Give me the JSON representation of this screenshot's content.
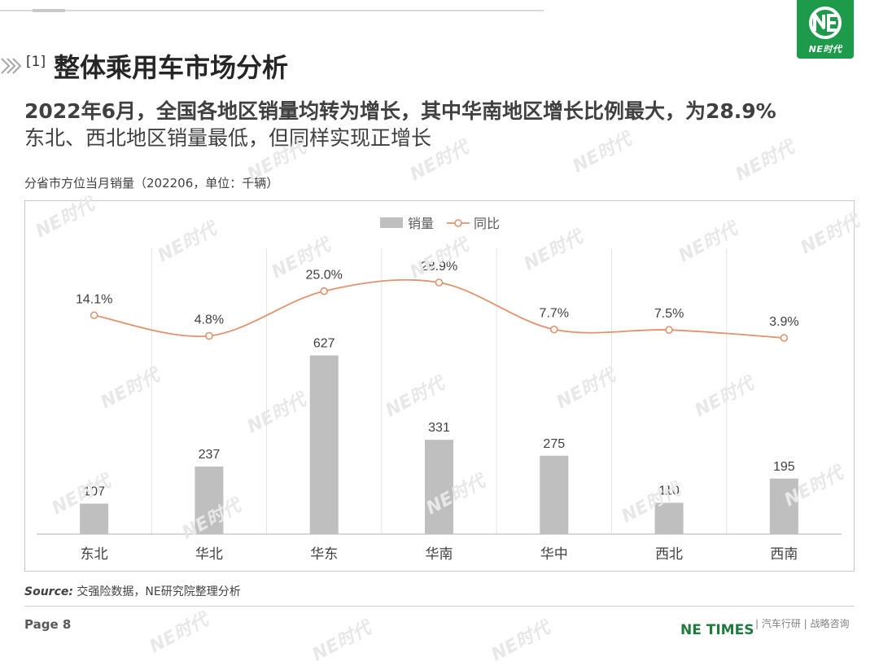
{
  "header": {
    "logo_text": "NE时代",
    "section_number": "[1]",
    "section_title": "整体乘用车市场分析"
  },
  "headline": {
    "line1": "2022年6月，全国各地区销量均转为增长，其中华南地区增长比例最大，为28.9%",
    "line2": "东北、西北地区销量最低，但同样实现正增长"
  },
  "chart_caption": "分省市方位当月销量（202206，单位：千辆）",
  "chart_data": {
    "type": "bar",
    "categories": [
      "东北",
      "华北",
      "华东",
      "华南",
      "华中",
      "西北",
      "西南"
    ],
    "series": [
      {
        "name": "销量",
        "type": "bar",
        "values": [
          107,
          237,
          627,
          331,
          275,
          110,
          195
        ],
        "labels": [
          "107",
          "237",
          "627",
          "331",
          "275",
          "110",
          "195"
        ],
        "color": "#bfbfbf"
      },
      {
        "name": "同比",
        "type": "line",
        "values": [
          14.1,
          4.8,
          25.0,
          28.9,
          7.7,
          7.5,
          3.9
        ],
        "labels": [
          "14.1%",
          "4.8%",
          "25.0%",
          "28.9%",
          "7.7%",
          "7.5%",
          "3.9%"
        ],
        "color": "#e2926c"
      }
    ],
    "legend_position": "top-center",
    "grid": "vertical-category-separators"
  },
  "footer": {
    "source_label": "Source:",
    "source_text": "交强险数据，NE研究院整理分析",
    "page": "Page 8",
    "brand": "NE TIMES",
    "tagline": "| 汽车行研 | 战略咨询"
  },
  "watermark_text": "NE时代"
}
